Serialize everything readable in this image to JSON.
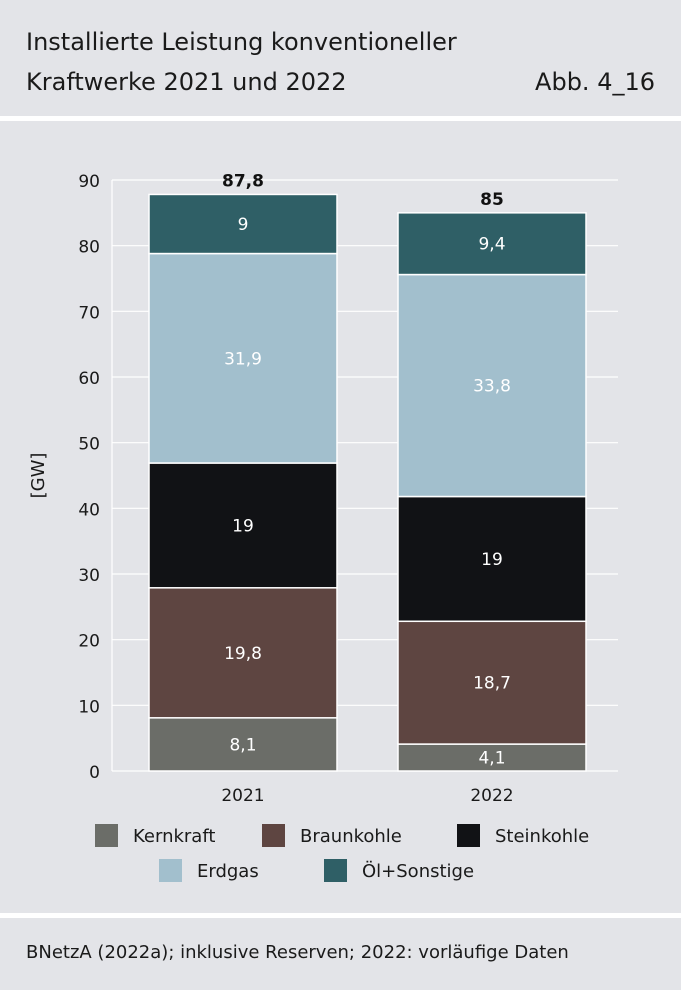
{
  "header": {
    "title_line1": "Installierte Leistung konventioneller",
    "title_line2": "Kraftwerke 2021 und 2022",
    "figure_number": "Abb. 4_16"
  },
  "footer": {
    "source": "BNetzA (2022a); inklusive Reserven; 2022: vorläufige Daten"
  },
  "chart_data": {
    "type": "bar",
    "stacked": true,
    "categories": [
      "2021",
      "2022"
    ],
    "ylabel": "[GW]",
    "ylim": [
      0,
      90
    ],
    "yticks": [
      0,
      10,
      20,
      30,
      40,
      50,
      60,
      70,
      80,
      90
    ],
    "grid": true,
    "legend_position": "bottom",
    "series": [
      {
        "name": "Kernkraft",
        "values": [
          8.1,
          4.1
        ],
        "labels": [
          "8,1",
          "4,1"
        ],
        "color": "#6b6d68"
      },
      {
        "name": "Braunkohle",
        "values": [
          19.8,
          18.7
        ],
        "labels": [
          "19,8",
          "18,7"
        ],
        "color": "#5e4541"
      },
      {
        "name": "Steinkohle",
        "values": [
          19,
          19
        ],
        "labels": [
          "19",
          "19"
        ],
        "color": "#111215"
      },
      {
        "name": "Erdgas",
        "values": [
          31.9,
          33.8
        ],
        "labels": [
          "31,9",
          "33,8"
        ],
        "color": "#a2bfcd"
      },
      {
        "name": "Öl+Sonstige",
        "values": [
          9,
          9.4
        ],
        "labels": [
          "9",
          "9,4"
        ],
        "color": "#2f5f66"
      }
    ],
    "totals": [
      87.8,
      85
    ],
    "total_labels": [
      "87,8",
      "85"
    ]
  }
}
